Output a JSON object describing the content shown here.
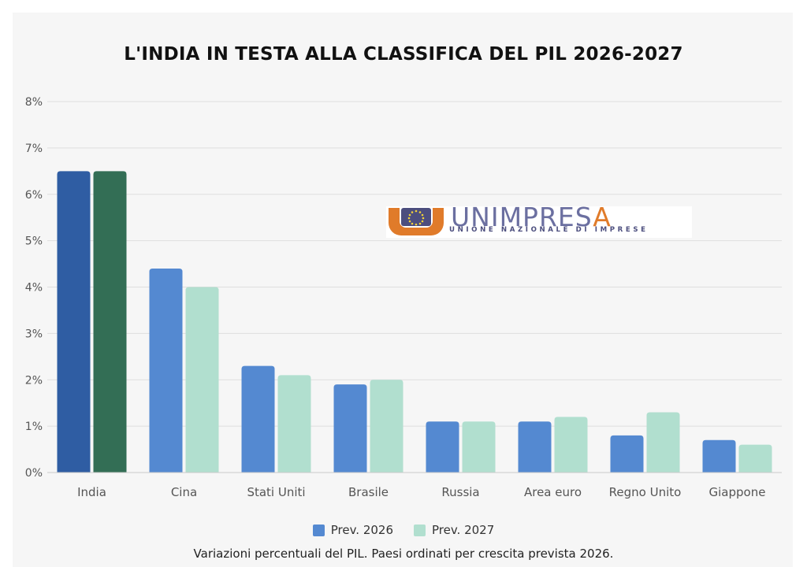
{
  "chart_data": {
    "type": "bar",
    "title": "L'INDIA IN TESTA ALLA CLASSIFICA DEL PIL 2026-2027",
    "categories": [
      "India",
      "Cina",
      "Stati Uniti",
      "Brasile",
      "Russia",
      "Area euro",
      "Regno Unito",
      "Giappone"
    ],
    "series": [
      {
        "name": "Prev. 2026",
        "values": [
          6.5,
          4.4,
          2.3,
          1.9,
          1.1,
          1.1,
          0.8,
          0.7
        ],
        "color": "#5489d1",
        "highlight_color": "#2f5da3"
      },
      {
        "name": "Prev. 2027",
        "values": [
          6.5,
          4.0,
          2.1,
          2.0,
          1.1,
          1.2,
          1.3,
          0.6
        ],
        "color": "#b1dfcf",
        "highlight_color": "#336e55"
      }
    ],
    "highlight_category": "India",
    "ylim": [
      0,
      8
    ],
    "yticks": [
      "0%",
      "1%",
      "2%",
      "3%",
      "4%",
      "5%",
      "6%",
      "7%",
      "8%"
    ],
    "ytick_values": [
      0,
      1,
      2,
      3,
      4,
      5,
      6,
      7,
      8
    ],
    "xlabel": "",
    "ylabel": "",
    "grid": true,
    "legend_position": "bottom-center",
    "caption": "Variazioni percentuali del PIL. Paesi ordinati per crescita prevista 2026."
  },
  "logo": {
    "word_main": "UNIMPRES",
    "word_end": "A",
    "subtitle": "UNIONE NAZIONALE DI IMPRESE",
    "colors": {
      "orange": "#e07b2a",
      "navy": "#4c4e7e",
      "blue": "#6b6fa0"
    }
  },
  "colors": {
    "grid": "#dedede",
    "axis_text": "#555555",
    "background": "#f6f6f6"
  }
}
